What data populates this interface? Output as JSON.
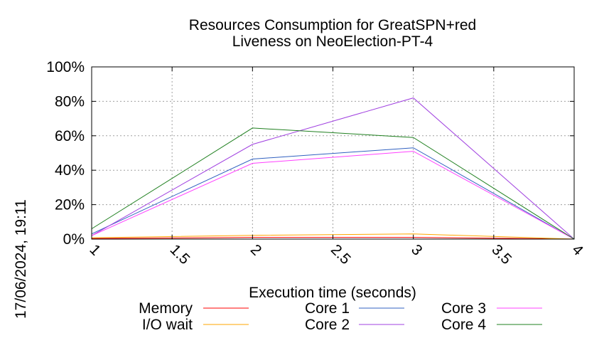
{
  "chart_data": {
    "type": "line",
    "title": [
      "Resources Consumption for GreatSPN+red",
      "Liveness on NeoElection-PT-4"
    ],
    "xlabel": "Execution time (seconds)",
    "ylabel": "",
    "xlim": [
      1,
      4
    ],
    "ylim": [
      0,
      100
    ],
    "xticks": [
      1,
      1.5,
      2,
      2.5,
      3,
      3.5,
      4
    ],
    "xtick_labels": [
      "1",
      "1.5",
      "2",
      "2.5",
      "3",
      "3.5",
      "4"
    ],
    "yticks": [
      0,
      20,
      40,
      60,
      80,
      100
    ],
    "ytick_labels": [
      "0%",
      "20%",
      "40%",
      "60%",
      "80%",
      "100%"
    ],
    "grid": true,
    "legend_position": "bottom",
    "timestamp": "17/06/2024, 19:11",
    "x": [
      1,
      2,
      3,
      4
    ],
    "series": [
      {
        "name": "Memory",
        "color": "#ff0000",
        "values": [
          0.3,
          1.0,
          1.0,
          0
        ]
      },
      {
        "name": "I/O wait",
        "color": "#ffa500",
        "values": [
          0.8,
          2.2,
          3.0,
          0
        ]
      },
      {
        "name": "Core 1",
        "color": "#3060c0",
        "values": [
          3,
          46.5,
          53,
          0
        ]
      },
      {
        "name": "Core 2",
        "color": "#a040e0",
        "values": [
          2,
          55,
          82,
          0
        ]
      },
      {
        "name": "Core 3",
        "color": "#ff40ff",
        "values": [
          2,
          44,
          51,
          0
        ]
      },
      {
        "name": "Core 4",
        "color": "#208020",
        "values": [
          6,
          64.5,
          59,
          0
        ]
      }
    ]
  }
}
